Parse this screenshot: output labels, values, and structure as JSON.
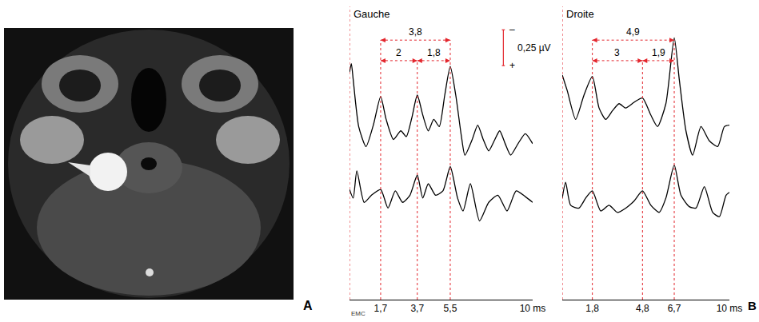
{
  "image_panel": {
    "label": "A"
  },
  "panel_label": "B",
  "credit": "EMC",
  "chart_data": [
    {
      "type": "line",
      "title": "Gauche",
      "color": "#000000",
      "tick_labels": "x",
      "xlim": [
        0,
        10
      ],
      "xticks": [
        {
          "value": 1.7,
          "label": "1,7"
        },
        {
          "value": 3.7,
          "label": "3,7"
        },
        {
          "value": 5.5,
          "label": "5,5"
        },
        {
          "value": 10,
          "label": "10 ms"
        }
      ],
      "ylim": [
        0,
        2.05
      ],
      "series": [
        {
          "x": [
            0,
            0.1,
            0.2,
            0.5,
            0.9,
            1.3,
            1.7,
            2.0,
            2.4,
            2.8,
            3.1,
            3.4,
            3.7,
            4.0,
            4.3,
            4.6,
            4.9,
            5.2,
            5.5,
            5.8,
            6.1,
            6.3,
            6.7,
            7.0,
            7.3,
            7.6,
            7.9,
            8.2,
            8.5,
            8.8,
            9.2,
            9.6,
            10.0
          ],
          "values": [
            1.59,
            1.65,
            1.54,
            1.21,
            1.07,
            1.22,
            1.42,
            1.26,
            1.12,
            1.18,
            1.14,
            1.27,
            1.43,
            1.29,
            1.18,
            1.26,
            1.21,
            1.43,
            1.63,
            1.43,
            1.15,
            1.01,
            1.12,
            1.22,
            1.12,
            1.04,
            1.11,
            1.18,
            1.09,
            1.01,
            1.09,
            1.16,
            1.09
          ]
        },
        {
          "x": [
            0,
            0.2,
            0.4,
            0.8,
            1.2,
            1.7,
            2.1,
            2.5,
            2.9,
            3.3,
            3.7,
            4.0,
            4.3,
            4.7,
            5.1,
            5.5,
            5.9,
            6.2,
            6.6,
            7.1,
            7.6,
            8.1,
            8.6,
            9.1,
            9.6,
            10.0
          ],
          "values": [
            0.77,
            0.71,
            0.9,
            0.68,
            0.73,
            0.77,
            0.64,
            0.76,
            0.68,
            0.73,
            0.87,
            0.71,
            0.81,
            0.73,
            0.76,
            0.93,
            0.71,
            0.62,
            0.81,
            0.55,
            0.68,
            0.73,
            0.62,
            0.76,
            0.72,
            0.68
          ]
        }
      ],
      "intervals": [
        {
          "from": 1.7,
          "to": 5.5,
          "label": "3,8"
        },
        {
          "from": 1.7,
          "to": 3.7,
          "label": "2"
        },
        {
          "from": 3.7,
          "to": 5.5,
          "label": "1,8"
        }
      ],
      "scale_bar": {
        "value": 0.25,
        "label": "0,25 µV",
        "top": "–",
        "bottom": "+"
      }
    },
    {
      "type": "line",
      "title": "Droite",
      "color": "#000000",
      "tick_labels": "x",
      "xlim": [
        0,
        10
      ],
      "xticks": [
        {
          "value": 1.8,
          "label": "1,8"
        },
        {
          "value": 4.8,
          "label": "4,8"
        },
        {
          "value": 6.7,
          "label": "6,7"
        },
        {
          "value": 10,
          "label": "10 ms"
        }
      ],
      "ylim": [
        0,
        2.05
      ],
      "series": [
        {
          "x": [
            0,
            0.3,
            0.8,
            1.3,
            1.8,
            2.2,
            2.6,
            3.0,
            3.4,
            3.8,
            4.3,
            4.8,
            5.3,
            5.7,
            6.2,
            6.7,
            7.0,
            7.4,
            7.8,
            8.3,
            8.8,
            9.3,
            9.7,
            10.0
          ],
          "values": [
            1.57,
            1.46,
            1.26,
            1.43,
            1.56,
            1.34,
            1.26,
            1.32,
            1.37,
            1.34,
            1.38,
            1.41,
            1.29,
            1.21,
            1.37,
            1.83,
            1.54,
            1.18,
            1.01,
            1.21,
            1.11,
            1.07,
            1.21,
            1.22
          ]
        },
        {
          "x": [
            0,
            0.2,
            0.5,
            1.0,
            1.4,
            1.8,
            2.3,
            2.8,
            3.3,
            3.8,
            4.3,
            4.8,
            5.3,
            5.8,
            6.2,
            6.7,
            7.1,
            7.6,
            8.0,
            8.5,
            9.0,
            9.4,
            9.8,
            10.0
          ],
          "values": [
            0.71,
            0.82,
            0.66,
            0.64,
            0.71,
            0.76,
            0.62,
            0.66,
            0.61,
            0.64,
            0.69,
            0.76,
            0.66,
            0.61,
            0.71,
            0.94,
            0.73,
            0.65,
            0.64,
            0.79,
            0.61,
            0.58,
            0.73,
            0.75
          ]
        }
      ],
      "intervals": [
        {
          "from": 1.8,
          "to": 6.7,
          "label": "4,9"
        },
        {
          "from": 1.8,
          "to": 4.8,
          "label": "3"
        },
        {
          "from": 4.8,
          "to": 6.7,
          "label": "1,9"
        }
      ]
    }
  ]
}
